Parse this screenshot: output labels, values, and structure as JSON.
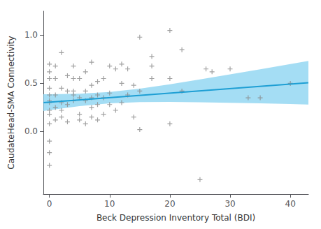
{
  "chart_data": {
    "type": "scatter",
    "xlabel": "Beck Depression Inventory Total (BDI)",
    "ylabel": "CaudateHead-SMA Connectivity",
    "xlim": [
      -1,
      43
    ],
    "ylim": [
      -0.65,
      1.25
    ],
    "xticks": [
      0,
      10,
      20,
      30,
      40
    ],
    "yticks": [
      {
        "value": 0.0,
        "label": "0.0"
      },
      0.5,
      {
        "value": 1.0,
        "label": "1.0"
      }
    ],
    "grid": false,
    "color": "#888888",
    "marker": "plus",
    "x": [
      0,
      0,
      0,
      0,
      0,
      0,
      0,
      0,
      0,
      0,
      0,
      0,
      0,
      1,
      1,
      1,
      1,
      1,
      2,
      2,
      2,
      2,
      2,
      3,
      3,
      3,
      3,
      4,
      4,
      4,
      4,
      4,
      5,
      5,
      5,
      5,
      6,
      6,
      6,
      6,
      7,
      7,
      7,
      7,
      7,
      8,
      8,
      8,
      8,
      9,
      9,
      9,
      10,
      10,
      10,
      11,
      11,
      12,
      12,
      12,
      13,
      13,
      14,
      14,
      15,
      15,
      15,
      17,
      17,
      17,
      20,
      20,
      20,
      22,
      22,
      25,
      26,
      27,
      30,
      33,
      35,
      40
    ],
    "values": [
      0.3,
      0.22,
      0.18,
      0.08,
      -0.1,
      -0.22,
      0.38,
      0.45,
      0.55,
      0.62,
      0.7,
      0.32,
      -0.35,
      0.12,
      0.25,
      0.38,
      0.55,
      0.68,
      0.15,
      0.22,
      0.3,
      0.45,
      0.82,
      0.1,
      0.28,
      0.42,
      0.58,
      0.32,
      0.38,
      0.42,
      0.55,
      0.68,
      0.12,
      0.18,
      0.35,
      0.55,
      0.08,
      0.32,
      0.42,
      0.62,
      0.15,
      0.25,
      0.35,
      0.48,
      0.72,
      0.12,
      0.28,
      0.38,
      0.52,
      0.18,
      0.35,
      0.55,
      0.28,
      0.4,
      0.68,
      0.22,
      0.65,
      0.3,
      0.5,
      0.7,
      0.38,
      0.65,
      0.15,
      0.48,
      0.02,
      0.42,
      0.98,
      0.55,
      0.68,
      0.78,
      0.08,
      0.55,
      1.05,
      0.42,
      0.85,
      -0.5,
      0.65,
      0.62,
      0.65,
      0.35,
      0.35,
      0.5
    ],
    "fit": {
      "type": "line",
      "color": "#1e9fd4",
      "line_style": "solid",
      "x": [
        -1,
        43
      ],
      "values": [
        0.3003,
        0.5071
      ]
    },
    "band": {
      "type": "area",
      "color": "#7ecff0",
      "x": [
        -1,
        0,
        5,
        10,
        15,
        20,
        25,
        30,
        35,
        40,
        43
      ],
      "lower": [
        0.213,
        0.2224,
        0.2646,
        0.2934,
        0.3057,
        0.3074,
        0.3041,
        0.2986,
        0.2919,
        0.2846,
        0.28
      ],
      "upper": [
        0.3876,
        0.3876,
        0.3924,
        0.4106,
        0.4453,
        0.4907,
        0.5409,
        0.5934,
        0.6471,
        0.7014,
        0.7342
      ]
    }
  }
}
